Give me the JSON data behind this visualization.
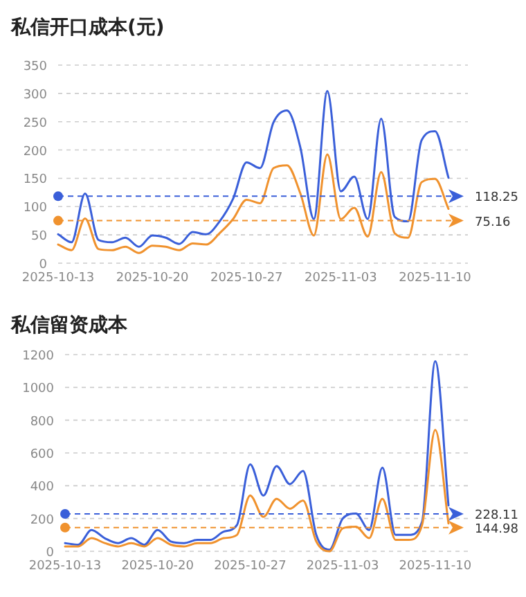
{
  "chart_data": [
    {
      "type": "line",
      "title": "私信开口成本(元)",
      "categories": [
        "2025-10-13",
        null,
        null,
        null,
        null,
        null,
        null,
        "2025-10-20",
        null,
        null,
        null,
        null,
        null,
        null,
        "2025-10-27",
        null,
        null,
        null,
        null,
        null,
        null,
        "2025-11-03",
        null,
        null,
        null,
        null,
        null,
        null,
        "2025-11-10",
        null
      ],
      "series": [
        {
          "color": "#3a5fd9",
          "values": [
            51,
            37,
            123,
            41,
            37,
            45,
            29,
            49,
            45,
            34,
            55,
            51,
            74,
            114,
            178,
            168,
            249,
            270,
            204,
            78,
            304,
            127,
            153,
            78,
            255,
            82,
            74,
            217,
            233,
            151
          ]
        },
        {
          "color": "#f0922e",
          "values": [
            33,
            23,
            79,
            25,
            23,
            29,
            18,
            31,
            29,
            23,
            35,
            33,
            53,
            78,
            112,
            106,
            168,
            173,
            123,
            49,
            192,
            78,
            98,
            47,
            161,
            53,
            45,
            143,
            149,
            96
          ]
        }
      ],
      "ylim": [
        0,
        350
      ],
      "yticks": [
        0,
        50,
        100,
        150,
        200,
        250,
        300,
        350
      ],
      "grid": "y",
      "ref_lines": [
        {
          "axis": "y",
          "value": 118.25,
          "label": "118.25",
          "color": "#3a5fd9",
          "line_style": "dashed"
        },
        {
          "axis": "y",
          "value": 75.16,
          "label": "75.16",
          "color": "#f0922e",
          "line_style": "dashed"
        }
      ]
    },
    {
      "type": "line",
      "title": "私信留资成本",
      "categories": [
        "2025-10-13",
        null,
        null,
        null,
        null,
        null,
        null,
        "2025-10-20",
        null,
        null,
        null,
        null,
        null,
        null,
        "2025-10-27",
        null,
        null,
        null,
        null,
        null,
        null,
        "2025-11-03",
        null,
        null,
        null,
        null,
        null,
        null,
        "2025-11-10",
        null
      ],
      "series": [
        {
          "color": "#3a5fd9",
          "values": [
            50,
            40,
            130,
            80,
            50,
            80,
            40,
            130,
            60,
            50,
            70,
            70,
            120,
            160,
            530,
            340,
            520,
            410,
            490,
            100,
            10,
            200,
            230,
            130,
            510,
            100,
            100,
            180,
            1160,
            280
          ]
        },
        {
          "color": "#f0922e",
          "values": [
            30,
            30,
            80,
            50,
            30,
            50,
            30,
            80,
            40,
            30,
            50,
            50,
            80,
            100,
            340,
            210,
            320,
            260,
            310,
            60,
            0,
            140,
            150,
            80,
            320,
            70,
            70,
            160,
            740,
            170
          ]
        }
      ],
      "ylim": [
        0,
        1200
      ],
      "yticks": [
        0,
        200,
        400,
        600,
        800,
        1000,
        1200
      ],
      "grid": "y",
      "ref_lines": [
        {
          "axis": "y",
          "value": 228.11,
          "label": "228.11",
          "color": "#3a5fd9",
          "line_style": "dashed"
        },
        {
          "axis": "y",
          "value": 144.98,
          "label": "144.98",
          "color": "#f0922e",
          "line_style": "dashed"
        }
      ]
    }
  ]
}
